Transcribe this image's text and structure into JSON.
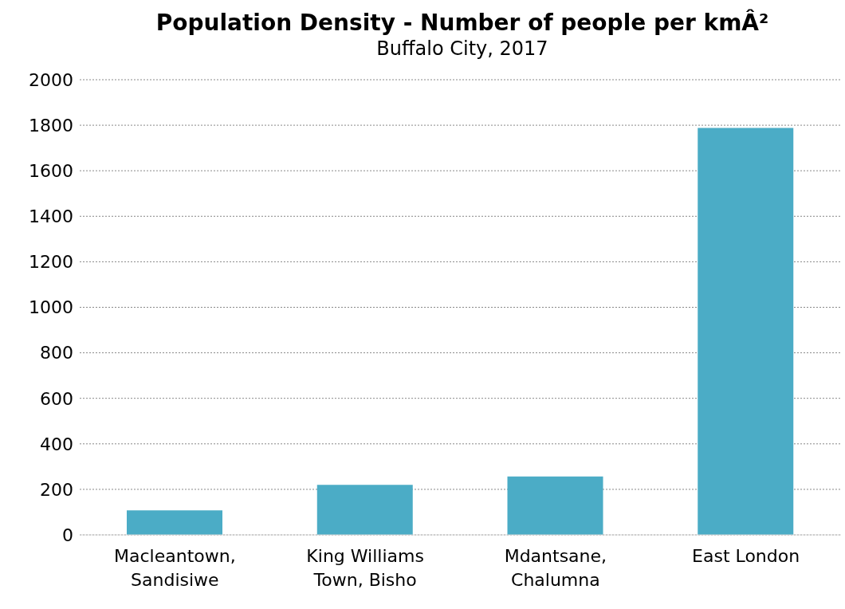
{
  "chart_data": {
    "type": "bar",
    "title": "Population Density - Number of people per kmÂ²",
    "subtitle": "Buffalo City, 2017",
    "categories": [
      "Macleantown, Sandisiwe",
      "King Williams Town, Bisho",
      "Mdantsane, Chalumna",
      "East London"
    ],
    "values": [
      108,
      220,
      257,
      1788
    ],
    "color": "#4bacc6",
    "ylim": [
      0,
      2000
    ],
    "yticks": [
      0,
      200,
      400,
      600,
      800,
      1000,
      1200,
      1400,
      1600,
      1800,
      2000
    ],
    "grid": "y",
    "legend": false
  }
}
